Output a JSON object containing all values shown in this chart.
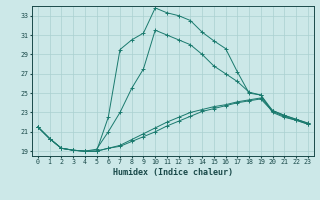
{
  "title": "",
  "xlabel": "Humidex (Indice chaleur)",
  "bg_color": "#cce8e8",
  "line_color": "#1a7a6e",
  "grid_color": "#aad0d0",
  "xlim": [
    -0.5,
    23.5
  ],
  "ylim": [
    18.5,
    34.0
  ],
  "xticks": [
    0,
    1,
    2,
    3,
    4,
    5,
    6,
    7,
    8,
    9,
    10,
    11,
    12,
    13,
    14,
    15,
    16,
    17,
    18,
    19,
    20,
    21,
    22,
    23
  ],
  "yticks": [
    19,
    21,
    23,
    25,
    27,
    29,
    31,
    33
  ],
  "curve1_x": [
    0,
    1,
    2,
    3,
    4,
    5,
    6,
    7,
    8,
    9,
    10,
    11,
    12,
    13,
    14,
    15,
    16,
    17,
    18,
    19,
    20,
    21,
    22,
    23
  ],
  "curve1_y": [
    21.5,
    20.3,
    19.3,
    19.1,
    19.0,
    19.0,
    22.5,
    29.5,
    30.5,
    31.2,
    33.8,
    33.3,
    33.0,
    32.5,
    31.3,
    30.4,
    29.6,
    27.2,
    25.0,
    24.8,
    23.0,
    22.5,
    22.2,
    21.8
  ],
  "curve2_x": [
    0,
    1,
    2,
    3,
    4,
    5,
    6,
    7,
    8,
    9,
    10,
    11,
    12,
    13,
    14,
    15,
    16,
    17,
    18,
    19,
    20,
    21,
    22,
    23
  ],
  "curve2_y": [
    21.5,
    20.3,
    19.3,
    19.1,
    19.0,
    19.0,
    19.3,
    19.5,
    20.0,
    20.5,
    21.0,
    21.6,
    22.1,
    22.6,
    23.1,
    23.4,
    23.7,
    24.0,
    24.2,
    24.4,
    23.1,
    22.6,
    22.2,
    21.8
  ],
  "curve3_x": [
    0,
    1,
    2,
    3,
    4,
    5,
    6,
    7,
    8,
    9,
    10,
    11,
    12,
    13,
    14,
    15,
    16,
    17,
    18,
    19,
    20,
    21,
    22,
    23
  ],
  "curve3_y": [
    21.5,
    20.3,
    19.3,
    19.1,
    19.0,
    19.0,
    19.3,
    19.6,
    20.2,
    20.8,
    21.4,
    22.0,
    22.5,
    23.0,
    23.3,
    23.6,
    23.8,
    24.1,
    24.3,
    24.5,
    23.2,
    22.7,
    22.3,
    21.9
  ],
  "curve4_x": [
    0,
    1,
    2,
    3,
    4,
    5,
    6,
    7,
    8,
    9,
    10,
    11,
    12,
    13,
    14,
    15,
    16,
    17,
    18,
    19,
    20,
    21,
    22,
    23
  ],
  "curve4_y": [
    21.5,
    20.3,
    19.3,
    19.1,
    19.0,
    19.2,
    21.0,
    23.0,
    25.5,
    27.5,
    31.5,
    31.0,
    30.5,
    30.0,
    29.0,
    27.8,
    27.0,
    26.2,
    25.1,
    24.8,
    23.2,
    22.7,
    22.3,
    21.9
  ]
}
